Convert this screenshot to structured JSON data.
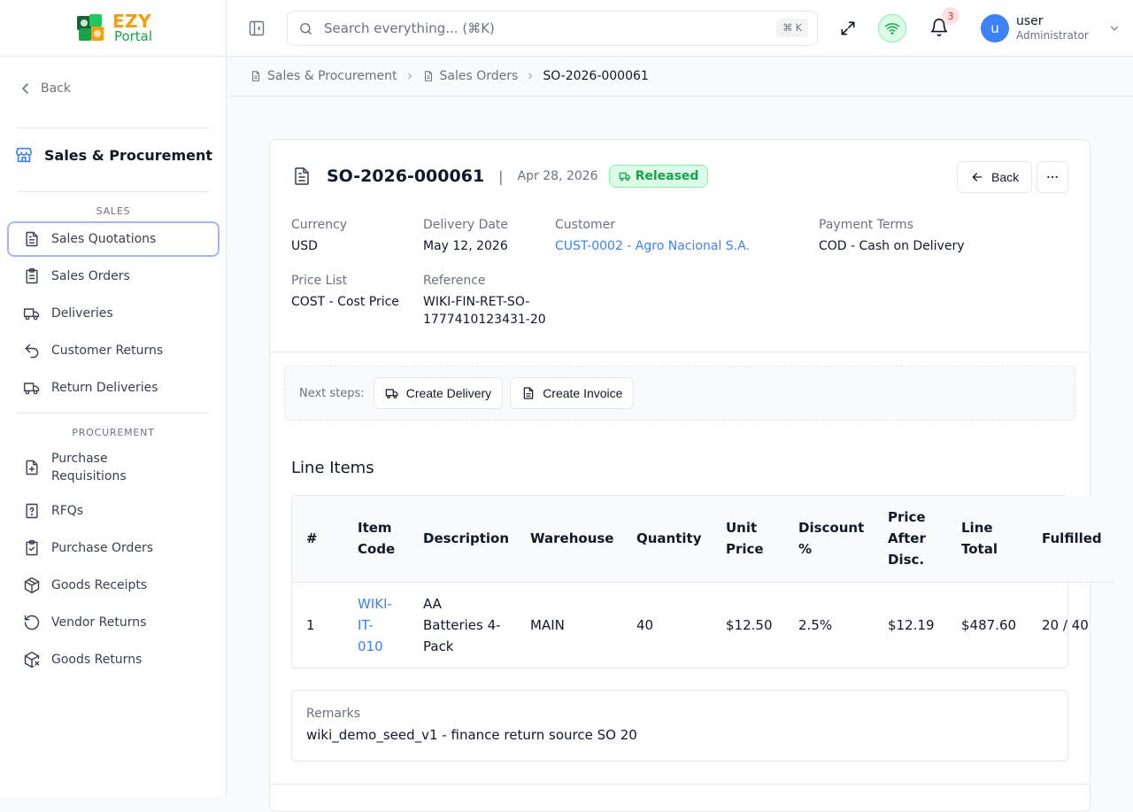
{
  "brand": {
    "name_top": "EZY",
    "name_bottom": "Portal"
  },
  "sidebar": {
    "back_label": "Back",
    "module_title": "Sales & Procurement",
    "sections": [
      {
        "label": "SALES",
        "items": [
          {
            "label": "Sales Quotations",
            "icon": "document-icon",
            "active": true
          },
          {
            "label": "Sales Orders",
            "icon": "clipboard-list-icon"
          },
          {
            "label": "Deliveries",
            "icon": "truck-icon"
          },
          {
            "label": "Customer Returns",
            "icon": "undo-icon"
          },
          {
            "label": "Return Deliveries",
            "icon": "truck-return-icon"
          }
        ]
      },
      {
        "label": "PROCUREMENT",
        "items": [
          {
            "label": "Purchase Requisitions",
            "icon": "file-plus-icon"
          },
          {
            "label": "RFQs",
            "icon": "file-question-icon"
          },
          {
            "label": "Purchase Orders",
            "icon": "clipboard-check-icon"
          },
          {
            "label": "Goods Receipts",
            "icon": "package-icon"
          },
          {
            "label": "Vendor Returns",
            "icon": "rotate-ccw-icon"
          },
          {
            "label": "Goods Returns",
            "icon": "package-x-icon"
          }
        ]
      }
    ]
  },
  "topbar": {
    "search_placeholder": "Search everything... (⌘K)",
    "search_shortcut": "⌘ K",
    "notification_count": "3",
    "user": {
      "initial": "u",
      "name": "user",
      "role": "Administrator"
    }
  },
  "breadcrumb": [
    {
      "label": "Sales & Procurement"
    },
    {
      "label": "Sales Orders"
    },
    {
      "label": "SO-2026-000061"
    }
  ],
  "document": {
    "number": "SO-2026-000061",
    "separator": "|",
    "date": "Apr 28, 2026",
    "status": "Released",
    "status_color": "#16a34a",
    "back_label": "Back",
    "fields": {
      "currency": {
        "label": "Currency",
        "value": "USD"
      },
      "delivery_date": {
        "label": "Delivery Date",
        "value": "May 12, 2026"
      },
      "customer": {
        "label": "Customer",
        "value": "CUST-0002 - Agro Nacional S.A."
      },
      "payment_terms": {
        "label": "Payment Terms",
        "value": "COD - Cash on Delivery"
      },
      "price_list": {
        "label": "Price List",
        "value": "COST - Cost Price"
      },
      "reference": {
        "label": "Reference",
        "value_line1": "WIKI-FIN-RET-SO-",
        "value_line2": "1777410123431-20"
      }
    },
    "next_steps": {
      "label": "Next steps:",
      "create_delivery": "Create Delivery",
      "create_invoice": "Create Invoice"
    },
    "line_items": {
      "title": "Line Items",
      "headers": {
        "num": "#",
        "item_code_1": "Item",
        "item_code_2": "Code",
        "description": "Description",
        "warehouse": "Warehouse",
        "quantity": "Quantity",
        "unit_price_1": "Unit",
        "unit_price_2": "Price",
        "discount_1": "Discount",
        "discount_2": "%",
        "price_after_1": "Price",
        "price_after_2": "After",
        "price_after_3": "Disc.",
        "line_total_1": "Line",
        "line_total_2": "Total",
        "fulfilled": "Fulfilled"
      },
      "rows": [
        {
          "num": "1",
          "item_code_1": "WIKI-",
          "item_code_2": "IT-",
          "item_code_3": "010",
          "description_1": "AA",
          "description_2": "Batteries 4-",
          "description_3": "Pack",
          "warehouse": "MAIN",
          "quantity": "40",
          "unit_price": "$12.50",
          "discount": "2.5%",
          "price_after": "$12.19",
          "line_total": "$487.60",
          "fulfilled": "20 / 40"
        }
      ]
    },
    "remarks": {
      "label": "Remarks",
      "value": "wiki_demo_seed_v1 - finance return source SO 20"
    }
  }
}
